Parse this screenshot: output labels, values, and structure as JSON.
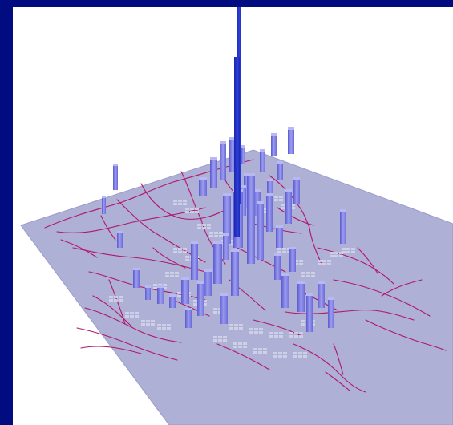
{
  "scene": {
    "background_color": "#ffffff",
    "frame_color": "#000c80",
    "ground_color": "#aeb0d6",
    "road_color": "#b0186a",
    "bar_color": "#8080e0",
    "tall_bar_color": "#2030c8"
  }
}
